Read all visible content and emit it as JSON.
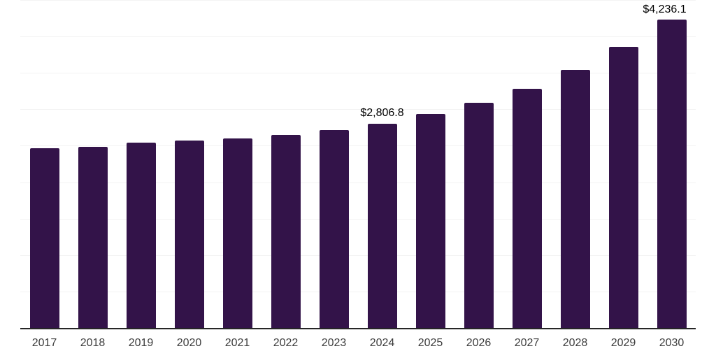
{
  "chart_data": {
    "type": "bar",
    "title": "",
    "xlabel": "",
    "ylabel": "",
    "categories": [
      "2017",
      "2018",
      "2019",
      "2020",
      "2021",
      "2022",
      "2023",
      "2024",
      "2025",
      "2026",
      "2027",
      "2028",
      "2029",
      "2030"
    ],
    "values": [
      2470,
      2490,
      2540,
      2575,
      2605,
      2645,
      2720,
      2806.8,
      2935,
      3090,
      3285,
      3540,
      3855,
      4236.1
    ],
    "labeled_points": [
      {
        "category": "2024",
        "label": "$2,806.8",
        "dx": 0
      },
      {
        "category": "2030",
        "label": "$4,236.1",
        "dx": -10
      }
    ],
    "ylim": [
      0,
      4500
    ],
    "gridline_interval": 500,
    "grid": true,
    "legend": "none",
    "colors": {
      "bar": "#331349",
      "axis_line": "#262626",
      "gridline": "#f3f3f3",
      "tick_label": "#3d3d3d",
      "data_label": "#000000",
      "background": "#ffffff"
    }
  }
}
